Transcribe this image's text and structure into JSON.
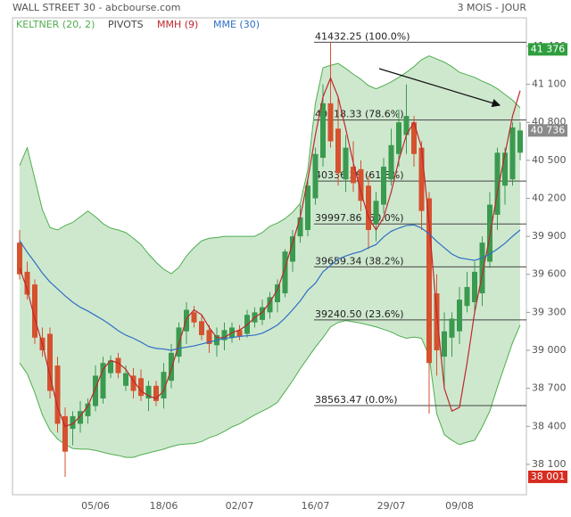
{
  "chart_data": {
    "type": "candlestick",
    "title": "WALL STREET 30 - abcbourse.com",
    "subtitle": "3 MOIS - JOUR",
    "categories": [
      null,
      null,
      null,
      null,
      null,
      null,
      null,
      null,
      null,
      null,
      "05/06",
      null,
      null,
      null,
      null,
      null,
      null,
      null,
      null,
      "18/06",
      null,
      null,
      null,
      null,
      null,
      null,
      null,
      null,
      null,
      "02/07",
      null,
      null,
      null,
      null,
      null,
      null,
      null,
      null,
      null,
      "16/07",
      null,
      null,
      null,
      null,
      null,
      null,
      null,
      null,
      null,
      "29/07",
      null,
      null,
      null,
      null,
      null,
      null,
      null,
      null,
      "09/08",
      null,
      null,
      null,
      null,
      null,
      null,
      null,
      null
    ],
    "open": [
      39850,
      39620,
      39520,
      39100,
      39130,
      38880,
      38480,
      38380,
      38420,
      38480,
      38560,
      38620,
      38820,
      38940,
      38720,
      38800,
      38780,
      38620,
      38720,
      38620,
      38760,
      38950,
      39150,
      39300,
      39230,
      39160,
      39040,
      39080,
      39100,
      39160,
      39130,
      39220,
      39240,
      39300,
      39380,
      39450,
      39700,
      39900,
      39950,
      40200,
      40520,
      40950,
      40750,
      40350,
      40450,
      40430,
      40300,
      40000,
      40150,
      40350,
      40550,
      40700,
      40800,
      40600,
      40200,
      39450,
      38950,
      39100,
      39150,
      39350,
      39380,
      39450,
      39700,
      40070,
      40300,
      40350,
      40560
    ],
    "high": [
      39950,
      39700,
      39560,
      39180,
      39180,
      38950,
      38550,
      38520,
      38600,
      38620,
      38880,
      38950,
      38960,
      38980,
      38880,
      38860,
      38850,
      38760,
      38760,
      38900,
      39050,
      39220,
      39380,
      39350,
      39280,
      39200,
      39180,
      39220,
      39220,
      39200,
      39320,
      39340,
      39400,
      39460,
      39560,
      39800,
      39950,
      40150,
      40350,
      40600,
      41100,
      41432,
      41000,
      40700,
      40650,
      40500,
      40380,
      40250,
      40520,
      40750,
      40900,
      41100,
      40850,
      40650,
      40250,
      39600,
      39300,
      39300,
      39500,
      39620,
      39700,
      39900,
      40250,
      40600,
      40600,
      40800,
      40800
    ],
    "low": [
      39560,
      39400,
      39050,
      38950,
      38620,
      38350,
      38001,
      38250,
      38350,
      38420,
      38520,
      38580,
      38780,
      38780,
      38680,
      38620,
      38600,
      38520,
      38560,
      38540,
      38700,
      38900,
      39050,
      39180,
      39080,
      38980,
      38950,
      39000,
      39060,
      39080,
      39100,
      39180,
      39200,
      39250,
      39300,
      39420,
      39620,
      39850,
      39900,
      40150,
      40450,
      40600,
      40300,
      40250,
      40250,
      40100,
      39800,
      39860,
      40080,
      40300,
      40450,
      40550,
      40450,
      39950,
      38500,
      38800,
      38700,
      38950,
      39050,
      39300,
      39300,
      39350,
      39650,
      39950,
      40150,
      40300,
      40500
    ],
    "close": [
      39600,
      39440,
      39100,
      39000,
      38680,
      38420,
      38200,
      38480,
      38520,
      38580,
      38800,
      38900,
      38920,
      38820,
      38820,
      38680,
      38640,
      38720,
      38600,
      38830,
      38980,
      39180,
      39320,
      39220,
      39120,
      39050,
      39120,
      39160,
      39180,
      39110,
      39280,
      39300,
      39340,
      39420,
      39520,
      39780,
      39900,
      40050,
      40300,
      40550,
      40950,
      40650,
      40400,
      40600,
      40320,
      40180,
      39950,
      40180,
      40450,
      40620,
      40800,
      40850,
      40550,
      40100,
      38900,
      39000,
      39150,
      39250,
      39400,
      39500,
      39620,
      39850,
      40150,
      40560,
      40560,
      40760,
      40736
    ],
    "up_color": "#3a9a4f",
    "down_color": "#d6512e",
    "series": [
      {
        "name": "KELTNER (20, 2)",
        "color": "#4fae4f",
        "upper": [
          40460,
          40600,
          40355,
          40110,
          39970,
          39950,
          39985,
          40010,
          40055,
          40100,
          40055,
          40000,
          39965,
          39950,
          39930,
          39885,
          39835,
          39760,
          39695,
          39640,
          39605,
          39655,
          39745,
          39810,
          39865,
          39885,
          39890,
          39900,
          39900,
          39900,
          39900,
          39900,
          39930,
          39980,
          40005,
          40040,
          40090,
          40160,
          40425,
          40950,
          41230,
          41250,
          41265,
          41225,
          41180,
          41140,
          41090,
          41065,
          41090,
          41120,
          41155,
          41195,
          41240,
          41295,
          41325,
          41300,
          41275,
          41240,
          41195,
          41175,
          41155,
          41125,
          41100,
          41065,
          41020,
          40975,
          40915
        ],
        "lower": [
          38900,
          38815,
          38665,
          38490,
          38370,
          38300,
          38255,
          38225,
          38220,
          38220,
          38210,
          38195,
          38180,
          38170,
          38155,
          38155,
          38175,
          38190,
          38205,
          38220,
          38240,
          38255,
          38260,
          38265,
          38280,
          38310,
          38330,
          38360,
          38395,
          38420,
          38455,
          38490,
          38520,
          38550,
          38590,
          38675,
          38760,
          38855,
          38940,
          39025,
          39100,
          39185,
          39220,
          39235,
          39225,
          39215,
          39200,
          39185,
          39165,
          39145,
          39115,
          39095,
          39105,
          39095,
          38955,
          38500,
          38335,
          38290,
          38255,
          38275,
          38290,
          38395,
          38520,
          38710,
          38885,
          39060,
          39200
        ]
      },
      {
        "name": "PIVOTS",
        "color": "#444444",
        "levels": [
          {
            "value": 41432.25,
            "label": "41432.25 (100.0%)"
          },
          {
            "value": 40818.33,
            "label": "40818.33 (78.6%)"
          },
          {
            "value": 40336.38,
            "label": "40336.38 (61.8%)"
          },
          {
            "value": 39997.86,
            "label": "39997.86 (50.0%)"
          },
          {
            "value": 39659.34,
            "label": "39659.34 (38.2%)"
          },
          {
            "value": 39240.5,
            "label": "39240.50 (23.6%)"
          },
          {
            "value": 38563.47,
            "label": "38563.47 (0.0%)"
          }
        ]
      },
      {
        "name": "MMH (9)",
        "color": "#c0262d",
        "values": [
          39650,
          39480,
          39250,
          39050,
          38800,
          38550,
          38400,
          38420,
          38480,
          38560,
          38700,
          38850,
          38920,
          38900,
          38850,
          38760,
          38680,
          38640,
          38620,
          38680,
          38850,
          39050,
          39250,
          39320,
          39280,
          39180,
          39100,
          39100,
          39140,
          39160,
          39200,
          39260,
          39300,
          39380,
          39480,
          39650,
          39850,
          40050,
          40350,
          40700,
          41000,
          41150,
          41000,
          40750,
          40480,
          40250,
          40050,
          39950,
          40050,
          40250,
          40500,
          40700,
          40800,
          40600,
          40000,
          39300,
          38700,
          38520,
          38550,
          38900,
          39300,
          39600,
          39900,
          40250,
          40550,
          40850,
          41050
        ]
      },
      {
        "name": "MME (30)",
        "color": "#2f6fc4",
        "values": [
          39865,
          39775,
          39695,
          39610,
          39540,
          39485,
          39430,
          39380,
          39340,
          39310,
          39275,
          39240,
          39200,
          39155,
          39120,
          39095,
          39065,
          39030,
          39015,
          39010,
          39000,
          39015,
          39025,
          39035,
          39050,
          39065,
          39080,
          39095,
          39100,
          39110,
          39115,
          39120,
          39135,
          39165,
          39200,
          39255,
          39320,
          39390,
          39475,
          39530,
          39620,
          39670,
          39720,
          39745,
          39765,
          39780,
          39810,
          39835,
          39895,
          39940,
          39965,
          39985,
          39990,
          39965,
          39920,
          39860,
          39810,
          39760,
          39730,
          39720,
          39710,
          39730,
          39760,
          39800,
          39845,
          39900,
          39950
        ]
      }
    ],
    "price_labels": [
      {
        "value": 41376,
        "label": "41 376",
        "color": "#2e9e3e"
      },
      {
        "value": 40736,
        "label": "40 736",
        "color": "#8a8a8a"
      },
      {
        "value": 38001,
        "label": "38 001",
        "color": "#d62d20"
      }
    ],
    "ylim": [
      37860,
      41625
    ],
    "yticks": [
      {
        "value": 38100,
        "label": "38 100"
      },
      {
        "value": 38400,
        "label": "38 400"
      },
      {
        "value": 38700,
        "label": "38 700"
      },
      {
        "value": 39000,
        "label": "39 000"
      },
      {
        "value": 39300,
        "label": "39 300"
      },
      {
        "value": 39600,
        "label": "39 600"
      },
      {
        "value": 39900,
        "label": "39 900"
      },
      {
        "value": 40200,
        "label": "40 200"
      },
      {
        "value": 40500,
        "label": "40 500"
      },
      {
        "value": 40800,
        "label": "40 800"
      },
      {
        "value": 41100,
        "label": "41 100"
      },
      {
        "value": 41400,
        "label": "41 400"
      }
    ]
  }
}
